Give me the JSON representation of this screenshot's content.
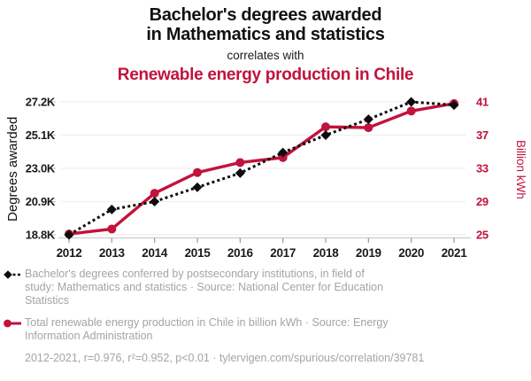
{
  "header": {
    "title_line1": "Bachelor's degrees awarded",
    "title_line2": "in Mathematics and statistics",
    "subtitle": "correlates with",
    "title2": "Renewable energy production in Chile"
  },
  "colors": {
    "accent_red": "#c1133c",
    "series_black": "#0d0d0d",
    "gridline": "#efefef",
    "axis_line": "#cccccc",
    "tick_mark": "#999999",
    "tick_label": "#1a1a1a",
    "legend_text": "#a4a4a4"
  },
  "chart_data": {
    "type": "line",
    "x": [
      "2012",
      "2013",
      "2014",
      "2015",
      "2016",
      "2017",
      "2018",
      "2019",
      "2020",
      "2021"
    ],
    "series": [
      {
        "name": "Bachelor's degrees conferred in Mathematics and statistics",
        "axis": "left",
        "units": "thousands of degrees",
        "values": [
          18.8,
          20.4,
          20.9,
          21.8,
          22.7,
          24.0,
          25.1,
          26.1,
          27.2,
          27.0
        ],
        "color": "#0d0d0d",
        "style": "dashed",
        "marker": "diamond"
      },
      {
        "name": "Total renewable energy production in Chile",
        "axis": "right",
        "units": "billion kWh",
        "values": [
          25.1,
          25.7,
          30.0,
          32.5,
          33.7,
          34.3,
          38.0,
          37.9,
          39.9,
          40.8
        ],
        "color": "#c1133c",
        "style": "solid",
        "marker": "circle"
      }
    ],
    "left_axis": {
      "label": "Degrees awarded",
      "ticks": [
        "18.8K",
        "20.9K",
        "23.0K",
        "25.1K",
        "27.2K"
      ],
      "min": 18.8,
      "max": 27.2
    },
    "right_axis": {
      "label": "Billion kWh",
      "ticks": [
        "25",
        "29",
        "33",
        "37",
        "41"
      ],
      "min": 25,
      "max": 41
    },
    "grid": true,
    "legend_position": "bottom"
  },
  "legend": {
    "series1_text": "Bachelor's degrees conferred by postsecondary institutions, in field of\nstudy: Mathematics and statistics · Source: National Center for Education\nStatistics",
    "series2_text": "Total renewable energy production in Chile in billion kWh · Source: Energy\nInformation Administration",
    "footnote": "2012-2021, r=0.976, r²=0.952, p<0.01 · tylervigen.com/spurious/correlation/39781"
  }
}
